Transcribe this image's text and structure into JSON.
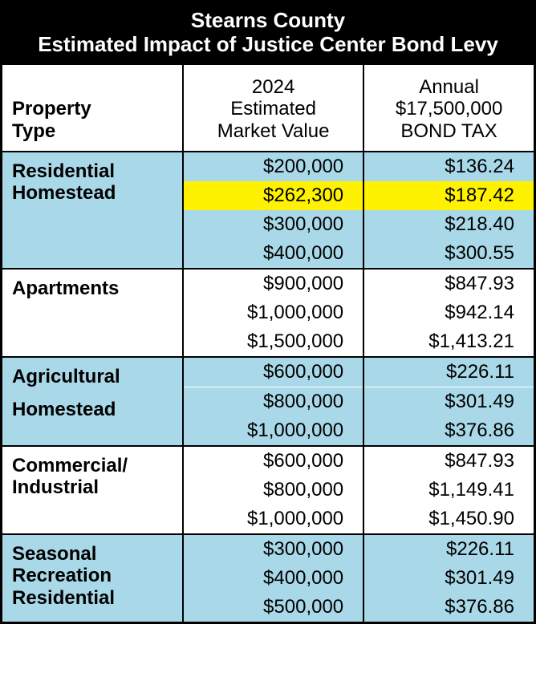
{
  "title": {
    "line1": "Stearns County",
    "line2": "Estimated Impact of Justice Center Bond Levy"
  },
  "columns": {
    "c1_line1": "Property",
    "c1_line2": "Type",
    "c2_line1": "2024",
    "c2_line2": "Estimated",
    "c2_line3": "Market Value",
    "c3_line1": "Annual",
    "c3_line2": "$17,500,000",
    "c3_line3": "BOND TAX"
  },
  "sections": [
    {
      "label_line1": "Residential",
      "label_line2": "Homestead",
      "bg": "bg-blue",
      "rows": [
        {
          "mv": "$200,000",
          "tax": "$136.24",
          "highlight": false
        },
        {
          "mv": "$262,300",
          "tax": "$187.42",
          "highlight": true
        },
        {
          "mv": "$300,000",
          "tax": "$218.40",
          "highlight": false
        },
        {
          "mv": "$400,000",
          "tax": "$300.55",
          "highlight": false
        }
      ]
    },
    {
      "label_line1": "Apartments",
      "label_line2": "",
      "bg": "bg-white",
      "rows": [
        {
          "mv": "$900,000",
          "tax": "$847.93",
          "highlight": false
        },
        {
          "mv": "$1,000,000",
          "tax": "$942.14",
          "highlight": false
        },
        {
          "mv": "$1,500,000",
          "tax": "$1,413.21",
          "highlight": false
        }
      ]
    },
    {
      "label_line1": "Agricultural",
      "label_line2": "Homestead",
      "bg": "bg-blue",
      "rows": [
        {
          "mv": "$600,000",
          "tax": "$226.11",
          "highlight": false,
          "sep_after": true
        },
        {
          "mv": "$800,000",
          "tax": "$301.49",
          "highlight": false
        },
        {
          "mv": "$1,000,000",
          "tax": "$376.86",
          "highlight": false
        }
      ]
    },
    {
      "label_line1": "Commercial/",
      "label_line2": "Industrial",
      "bg": "bg-white",
      "rows": [
        {
          "mv": "$600,000",
          "tax": "$847.93",
          "highlight": false
        },
        {
          "mv": "$800,000",
          "tax": "$1,149.41",
          "highlight": false
        },
        {
          "mv": "$1,000,000",
          "tax": "$1,450.90",
          "highlight": false
        }
      ]
    },
    {
      "label_line1": "Seasonal Recreation",
      "label_line2": "Residential",
      "bg": "bg-blue",
      "rows": [
        {
          "mv": "$300,000",
          "tax": "$226.11",
          "highlight": false
        },
        {
          "mv": "$400,000",
          "tax": "$301.49",
          "highlight": false
        },
        {
          "mv": "$500,000",
          "tax": "$376.86",
          "highlight": false
        }
      ]
    }
  ],
  "colors": {
    "blue": "#a9d8e8",
    "yellow": "#fff200",
    "black": "#000000",
    "white": "#ffffff"
  }
}
